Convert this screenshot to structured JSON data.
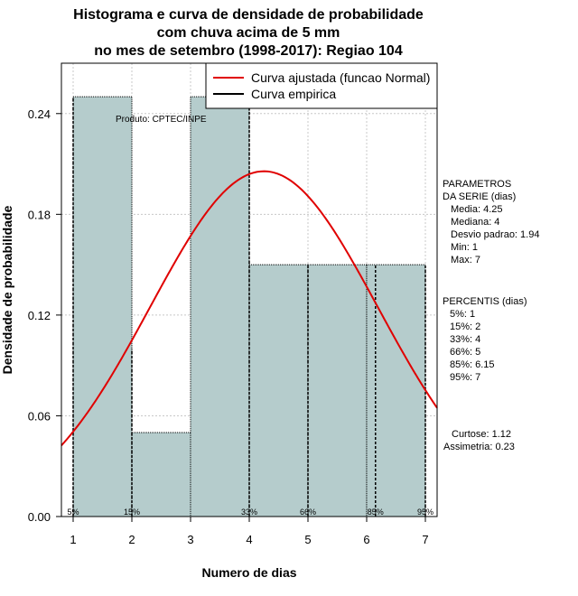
{
  "chart_data": {
    "type": "bar",
    "title_lines": [
      "Histograma e curva de densidade de probabilidade",
      "com chuva acima de 5 mm",
      "no mes de setembro (1998-2017): Regiao 104"
    ],
    "xlabel": "Numero de dias",
    "ylabel": "Densidade de probabilidade",
    "xlim": [
      0.8,
      7.2
    ],
    "ylim": [
      0,
      0.27
    ],
    "x_ticks": [
      1,
      2,
      3,
      4,
      5,
      6,
      7
    ],
    "y_ticks": [
      0.0,
      0.06,
      0.12,
      0.18,
      0.24
    ],
    "y_tick_labels": [
      "0.00",
      "0.06",
      "0.12",
      "0.18",
      "0.24"
    ],
    "bins": [
      {
        "start": 1,
        "end": 2,
        "density": 0.25
      },
      {
        "start": 2,
        "end": 3,
        "density": 0.05
      },
      {
        "start": 3,
        "end": 4,
        "density": 0.25
      },
      {
        "start": 4,
        "end": 5,
        "density": 0.15
      },
      {
        "start": 5,
        "end": 6,
        "density": 0.15
      },
      {
        "start": 6,
        "end": 7,
        "density": 0.15
      }
    ],
    "bar_color": "#b5cccc",
    "curve_color": "#e00000",
    "normal_fit": {
      "mean": 4.25,
      "sd": 1.94
    },
    "percentiles": [
      {
        "label": "5%",
        "x": 1
      },
      {
        "label": "15%",
        "x": 2
      },
      {
        "label": "33%",
        "x": 4
      },
      {
        "label": "66%",
        "x": 5
      },
      {
        "label": "85%",
        "x": 6.15
      },
      {
        "label": "95%",
        "x": 7
      }
    ],
    "legend": [
      {
        "label": "Curva ajustada (funcao Normal)",
        "color": "#e00000"
      },
      {
        "label": "Curva empirica",
        "color": "#000000"
      }
    ],
    "legend_position": "top-right",
    "producer": "Produto: CPTEC/INPE",
    "grid": true
  },
  "side_panel": {
    "parametros": {
      "title_lines": [
        "PARAMETROS",
        "DA SERIE (dias)"
      ],
      "items": [
        "Media: 4.25",
        "Mediana: 4",
        "Desvio padrao: 1.94",
        "Min: 1",
        "Max: 7"
      ]
    },
    "percentis": {
      "title": "PERCENTIS (dias)",
      "items": [
        "5%: 1",
        "15%: 2",
        "33%: 4",
        "66%: 5",
        "85%: 6.15",
        "95%: 7"
      ]
    },
    "stats": [
      "Curtose: 1.12",
      "Assimetria: 0.23"
    ]
  }
}
